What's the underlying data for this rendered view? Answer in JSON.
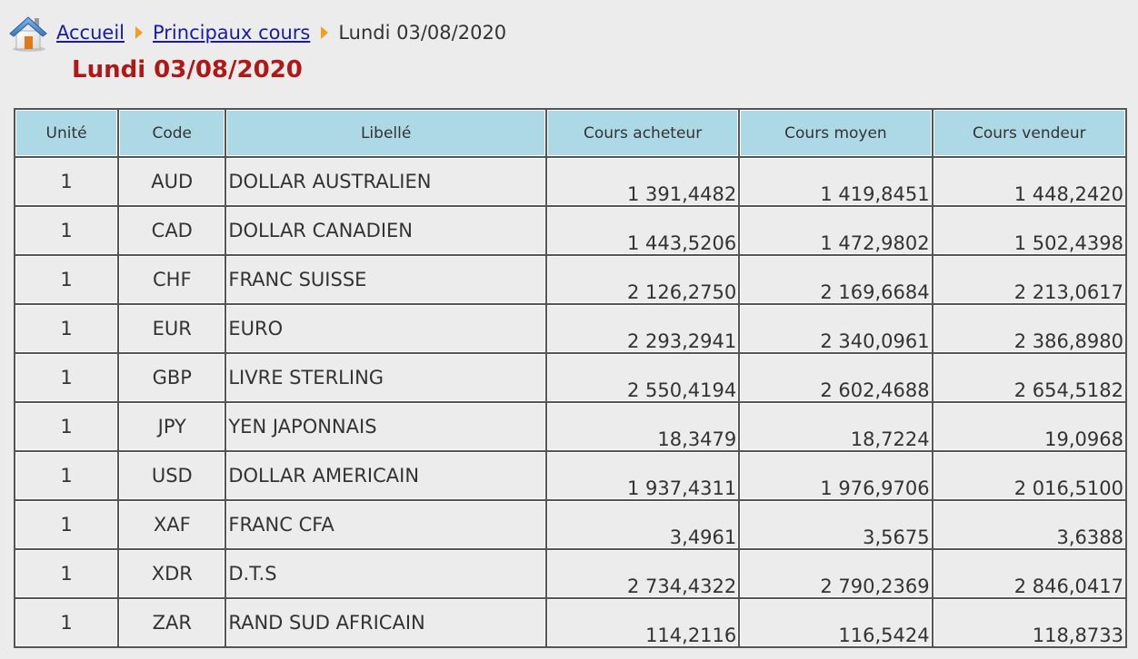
{
  "breadcrumb": {
    "home": "Accueil",
    "section": "Principaux cours",
    "current": "Lundi 03/08/2020"
  },
  "title": "Lundi 03/08/2020",
  "table": {
    "headers": [
      "Unité",
      "Code",
      "Libellé",
      "Cours acheteur",
      "Cours moyen",
      "Cours vendeur"
    ],
    "rows": [
      {
        "unit": "1",
        "code": "AUD",
        "label": "DOLLAR AUSTRALIEN",
        "buy": "1 391,4482",
        "mid": "1 419,8451",
        "sell": "1 448,2420"
      },
      {
        "unit": "1",
        "code": "CAD",
        "label": "DOLLAR CANADIEN",
        "buy": "1 443,5206",
        "mid": "1 472,9802",
        "sell": "1 502,4398"
      },
      {
        "unit": "1",
        "code": "CHF",
        "label": "FRANC SUISSE",
        "buy": "2 126,2750",
        "mid": "2 169,6684",
        "sell": "2 213,0617"
      },
      {
        "unit": "1",
        "code": "EUR",
        "label": "EURO",
        "buy": "2 293,2941",
        "mid": "2 340,0961",
        "sell": "2 386,8980"
      },
      {
        "unit": "1",
        "code": "GBP",
        "label": "LIVRE STERLING",
        "buy": "2 550,4194",
        "mid": "2 602,4688",
        "sell": "2 654,5182"
      },
      {
        "unit": "1",
        "code": "JPY",
        "label": "YEN JAPONNAIS",
        "buy": "18,3479",
        "mid": "18,7224",
        "sell": "19,0968"
      },
      {
        "unit": "1",
        "code": "USD",
        "label": "DOLLAR AMERICAIN",
        "buy": "1 937,4311",
        "mid": "1 976,9706",
        "sell": "2 016,5100"
      },
      {
        "unit": "1",
        "code": "XAF",
        "label": "FRANC CFA",
        "buy": "3,4961",
        "mid": "3,5675",
        "sell": "3,6388"
      },
      {
        "unit": "1",
        "code": "XDR",
        "label": "D.T.S",
        "buy": "2 734,4322",
        "mid": "2 790,2369",
        "sell": "2 846,0417"
      },
      {
        "unit": "1",
        "code": "ZAR",
        "label": "RAND SUD AFRICAIN",
        "buy": "114,2116",
        "mid": "116,5424",
        "sell": "118,8733"
      }
    ]
  },
  "icons": {
    "home": "home-icon",
    "separator": "chevron-right-icon"
  },
  "colors": {
    "title": "#b01818",
    "link": "#1a1aa6",
    "header_bg": "#add8e6",
    "separator": "#f0a020"
  }
}
